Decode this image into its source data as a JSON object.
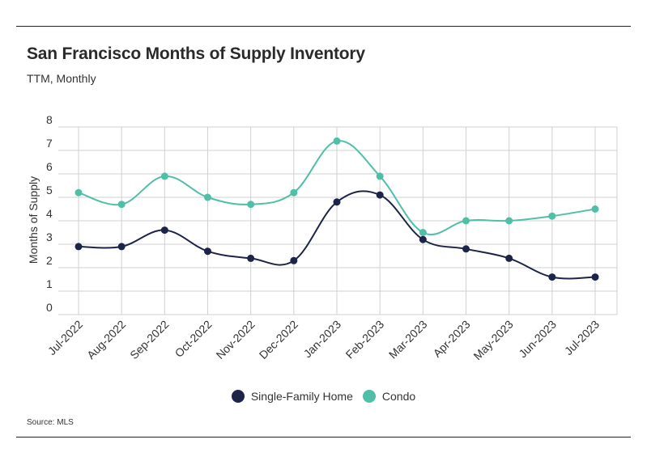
{
  "title": "San Francisco Months of Supply Inventory",
  "subtitle": "TTM, Monthly",
  "source": "Source:  MLS",
  "chart_data": {
    "type": "line",
    "title": "San Francisco Months of Supply Inventory",
    "subtitle": "TTM, Monthly",
    "xlabel": "",
    "ylabel": "Months of Supply",
    "ylim": [
      0,
      8
    ],
    "yticks": [
      "0",
      "1",
      "2",
      "3",
      "4",
      "5",
      "6",
      "7",
      "8"
    ],
    "grid": true,
    "legend_position": "bottom-center",
    "categories": [
      "Jul-2022",
      "Aug-2022",
      "Sep-2022",
      "Oct-2022",
      "Nov-2022",
      "Dec-2022",
      "Jan-2023",
      "Feb-2023",
      "Mar-2023",
      "Apr-2023",
      "May-2023",
      "Jun-2023",
      "Jul-2023"
    ],
    "series": [
      {
        "name": "Single-Family Home",
        "color": "#1c2449",
        "values": [
          2.9,
          2.9,
          3.6,
          2.7,
          2.4,
          2.3,
          4.8,
          5.1,
          3.2,
          2.8,
          2.4,
          1.6,
          1.6
        ]
      },
      {
        "name": "Condo",
        "color": "#4fbfa8",
        "values": [
          5.2,
          4.7,
          5.9,
          5.0,
          4.7,
          5.2,
          7.4,
          5.9,
          3.5,
          4.0,
          4.0,
          4.2,
          4.5
        ]
      }
    ]
  }
}
